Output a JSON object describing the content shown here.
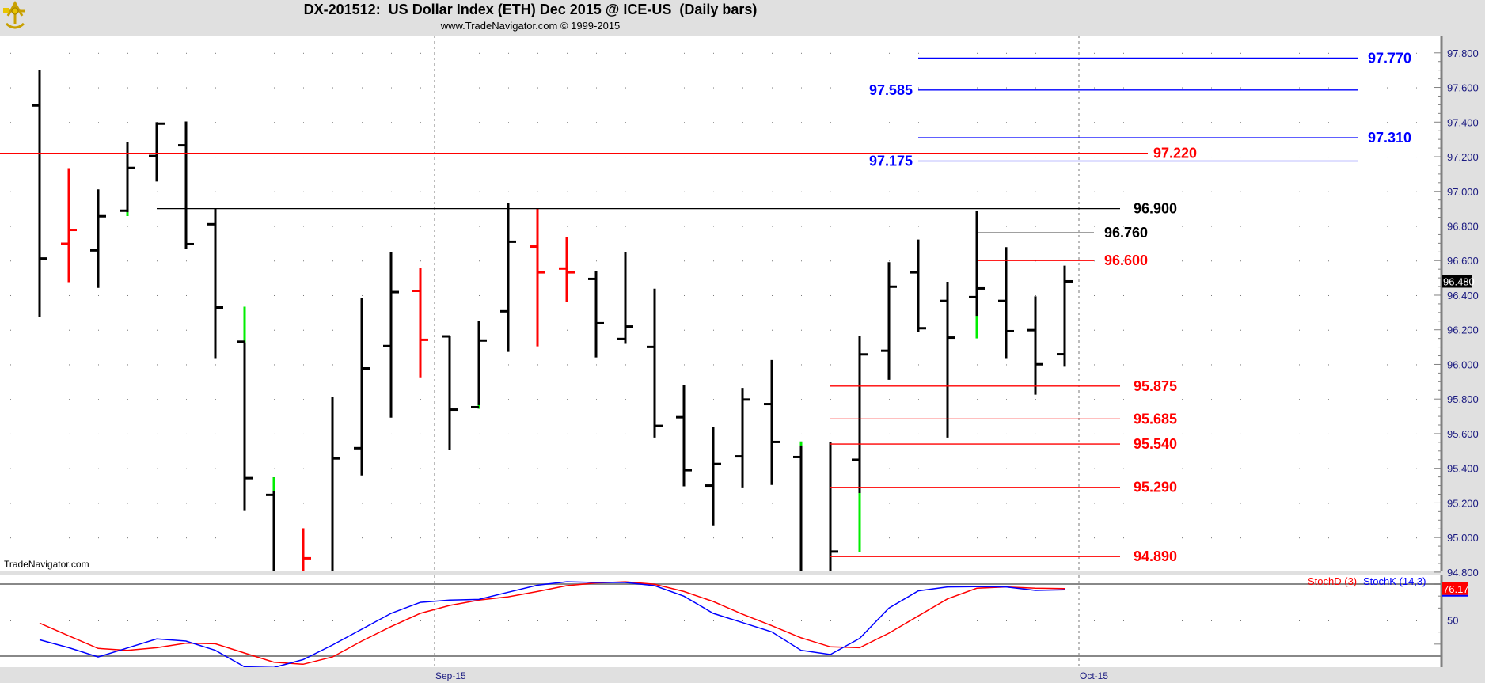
{
  "header": {
    "title": "DX-201512:  US Dollar Index (ETH) Dec 2015 @ ICE-US  (Daily bars)",
    "subtitle": "www.TradeNavigator.com © 1999-2015",
    "logo": "sextant-logo-icon"
  },
  "watermark": "TradeNavigator.com",
  "chart_data": [
    {
      "type": "ohlc",
      "title": "DX-201512:  US Dollar Index (ETH) Dec 2015 @ ICE-US  (Daily bars)",
      "ylim": [
        94.8,
        97.8
      ],
      "grid": true,
      "y_ticks": [
        "97.800",
        "97.600",
        "97.400",
        "97.200",
        "97.000",
        "96.800",
        "96.600",
        "96.400",
        "96.200",
        "96.000",
        "95.800",
        "95.600",
        "95.400",
        "95.200",
        "95.000",
        "94.800"
      ],
      "x_ticks": [
        "Sep-15",
        "Oct-15"
      ],
      "last_price": "96.480",
      "colors": {
        "up": "#000000",
        "down": "#ff0000",
        "highlight": "#00ee00"
      },
      "bars": [
        {
          "o": 97.496,
          "h": 97.697,
          "l": 96.278,
          "c": 96.612,
          "color": "black"
        },
        {
          "o": 96.697,
          "h": 97.129,
          "l": 96.48,
          "c": 96.777,
          "color": "red"
        },
        {
          "o": 96.659,
          "h": 97.007,
          "l": 96.447,
          "c": 96.856,
          "color": "black"
        },
        {
          "o": 96.888,
          "h": 97.28,
          "l": 96.862,
          "c": 97.135,
          "color": "black",
          "green": [
            96.862,
            96.875
          ]
        },
        {
          "o": 97.204,
          "h": 97.395,
          "l": 97.061,
          "c": 97.391,
          "color": "black"
        },
        {
          "o": 97.266,
          "h": 97.399,
          "l": 96.671,
          "c": 96.695,
          "color": "black"
        },
        {
          "o": 96.81,
          "h": 96.896,
          "l": 96.041,
          "c": 96.329,
          "color": "black"
        },
        {
          "o": 96.131,
          "h": 96.329,
          "l": 95.158,
          "c": 95.343,
          "color": "black",
          "green": [
            96.131,
            96.329
          ]
        },
        {
          "o": 95.246,
          "h": 95.343,
          "l": null,
          "c": null,
          "color": "black",
          "green": [
            95.274,
            95.343
          ]
        },
        {
          "o": null,
          "h": 95.049,
          "l": null,
          "c": 94.88,
          "color": "red"
        },
        {
          "o": null,
          "h": 95.808,
          "l": null,
          "c": 95.457,
          "color": "black"
        },
        {
          "o": 95.516,
          "h": 96.379,
          "l": 95.363,
          "c": 95.977,
          "color": "black"
        },
        {
          "o": 96.106,
          "h": 96.643,
          "l": 95.697,
          "c": 96.418,
          "color": "black"
        },
        {
          "o": 96.425,
          "h": 96.554,
          "l": 95.93,
          "c": 96.142,
          "color": "red"
        },
        {
          "o": 96.162,
          "h": 96.162,
          "l": 95.51,
          "c": 95.739,
          "color": "black"
        },
        {
          "o": 95.753,
          "h": 96.248,
          "l": 95.749,
          "c": 96.138,
          "color": "black",
          "green": [
            95.749,
            95.76
          ]
        },
        {
          "o": 96.307,
          "h": 96.926,
          "l": 96.077,
          "c": 96.709,
          "color": "black"
        },
        {
          "o": 96.681,
          "h": 96.896,
          "l": 96.109,
          "c": 96.532,
          "color": "red"
        },
        {
          "o": 96.554,
          "h": 96.733,
          "l": 96.365,
          "c": 96.532,
          "color": "red"
        },
        {
          "o": 96.494,
          "h": 96.534,
          "l": 96.045,
          "c": 96.238,
          "color": "black"
        },
        {
          "o": 96.147,
          "h": 96.647,
          "l": 96.123,
          "c": 96.219,
          "color": "black"
        },
        {
          "o": 96.101,
          "h": 96.433,
          "l": 95.582,
          "c": 95.645,
          "color": "black"
        },
        {
          "o": 95.695,
          "h": 95.876,
          "l": 95.3,
          "c": 95.389,
          "color": "black"
        },
        {
          "o": 95.3,
          "h": 95.634,
          "l": 95.075,
          "c": 95.425,
          "color": "black"
        },
        {
          "o": 95.469,
          "h": 95.86,
          "l": 95.294,
          "c": 95.797,
          "color": "black"
        },
        {
          "o": 95.771,
          "h": 96.021,
          "l": 95.308,
          "c": 95.552,
          "color": "black"
        },
        {
          "o": 95.465,
          "h": 95.55,
          "l": null,
          "c": null,
          "color": "black",
          "green": [
            95.536,
            95.55
          ]
        },
        {
          "o": null,
          "h": 95.546,
          "l": null,
          "c": 94.919,
          "color": "black"
        },
        {
          "o": 95.449,
          "h": 96.159,
          "l": 94.919,
          "c": 96.058,
          "color": "black",
          "green": [
            94.919,
            95.252
          ]
        },
        {
          "o": 96.079,
          "h": 96.586,
          "l": 95.916,
          "c": 96.449,
          "color": "black"
        },
        {
          "o": 96.532,
          "h": 96.717,
          "l": 96.193,
          "c": 96.209,
          "color": "black"
        },
        {
          "o": 96.367,
          "h": 96.473,
          "l": 95.582,
          "c": 96.155,
          "color": "black"
        },
        {
          "o": 96.389,
          "h": 96.882,
          "l": 96.155,
          "c": 96.439,
          "color": "black",
          "green": [
            96.155,
            96.276
          ]
        },
        {
          "o": 96.367,
          "h": 96.673,
          "l": 96.041,
          "c": 96.192,
          "color": "black"
        },
        {
          "o": 96.198,
          "h": 96.389,
          "l": 95.83,
          "c": 96.001,
          "color": "black"
        },
        {
          "o": 96.059,
          "h": 96.566,
          "l": 95.991,
          "c": 96.48,
          "color": "black"
        }
      ],
      "levels": [
        {
          "value": 97.77,
          "label": "97.770",
          "color": "#0000ff"
        },
        {
          "value": 97.585,
          "label": "97.585",
          "color": "#0000ff"
        },
        {
          "value": 97.31,
          "label": "97.310",
          "color": "#0000ff"
        },
        {
          "value": 97.22,
          "label": "97.220",
          "color": "#ff0000"
        },
        {
          "value": 97.175,
          "label": "97.175",
          "color": "#0000ff"
        },
        {
          "value": 96.9,
          "label": "96.900",
          "color": "#000000"
        },
        {
          "value": 96.76,
          "label": "96.760",
          "color": "#000000"
        },
        {
          "value": 96.6,
          "label": "96.600",
          "color": "#ff0000"
        },
        {
          "value": 95.875,
          "label": "95.875",
          "color": "#ff0000"
        },
        {
          "value": 95.685,
          "label": "95.685",
          "color": "#ff0000"
        },
        {
          "value": 95.54,
          "label": "95.540",
          "color": "#ff0000"
        },
        {
          "value": 95.29,
          "label": "95.290",
          "color": "#ff0000"
        },
        {
          "value": 94.89,
          "label": "94.890",
          "color": "#ff0000"
        }
      ]
    },
    {
      "type": "line",
      "y_ticks": [
        "50"
      ],
      "reference_lines": [
        20,
        80
      ],
      "last_value": "76.17",
      "series": [
        {
          "name": "StochD (3)",
          "color": "#ff0000",
          "values": [
            47.5,
            36.9,
            26.4,
            24.8,
            27.0,
            30.8,
            30.3,
            22.6,
            14.9,
            13.2,
            19.3,
            32.5,
            44.6,
            55.6,
            62.2,
            66.6,
            69.4,
            73.8,
            78.7,
            80.9,
            81.9,
            79.8,
            73.8,
            65.5,
            54.9,
            45.3,
            35.2,
            27.7,
            27.0,
            39.1,
            53.4,
            67.7,
            76.5,
            77.6,
            76.5,
            76.17
          ]
        },
        {
          "name": "StochK (14,3)",
          "color": "#0000ff",
          "values": [
            33.6,
            27.0,
            19.3,
            26.8,
            34.3,
            32.5,
            24.8,
            11.0,
            10.5,
            17.1,
            29.2,
            42.4,
            55.6,
            64.8,
            66.6,
            67.2,
            73.2,
            79.1,
            81.9,
            81.3,
            81.3,
            78.7,
            69.9,
            55.6,
            47.9,
            40.2,
            24.8,
            21.3,
            34.7,
            60.0,
            74.3,
            77.6,
            77.8,
            77.6,
            74.7,
            75.2
          ]
        }
      ]
    }
  ]
}
